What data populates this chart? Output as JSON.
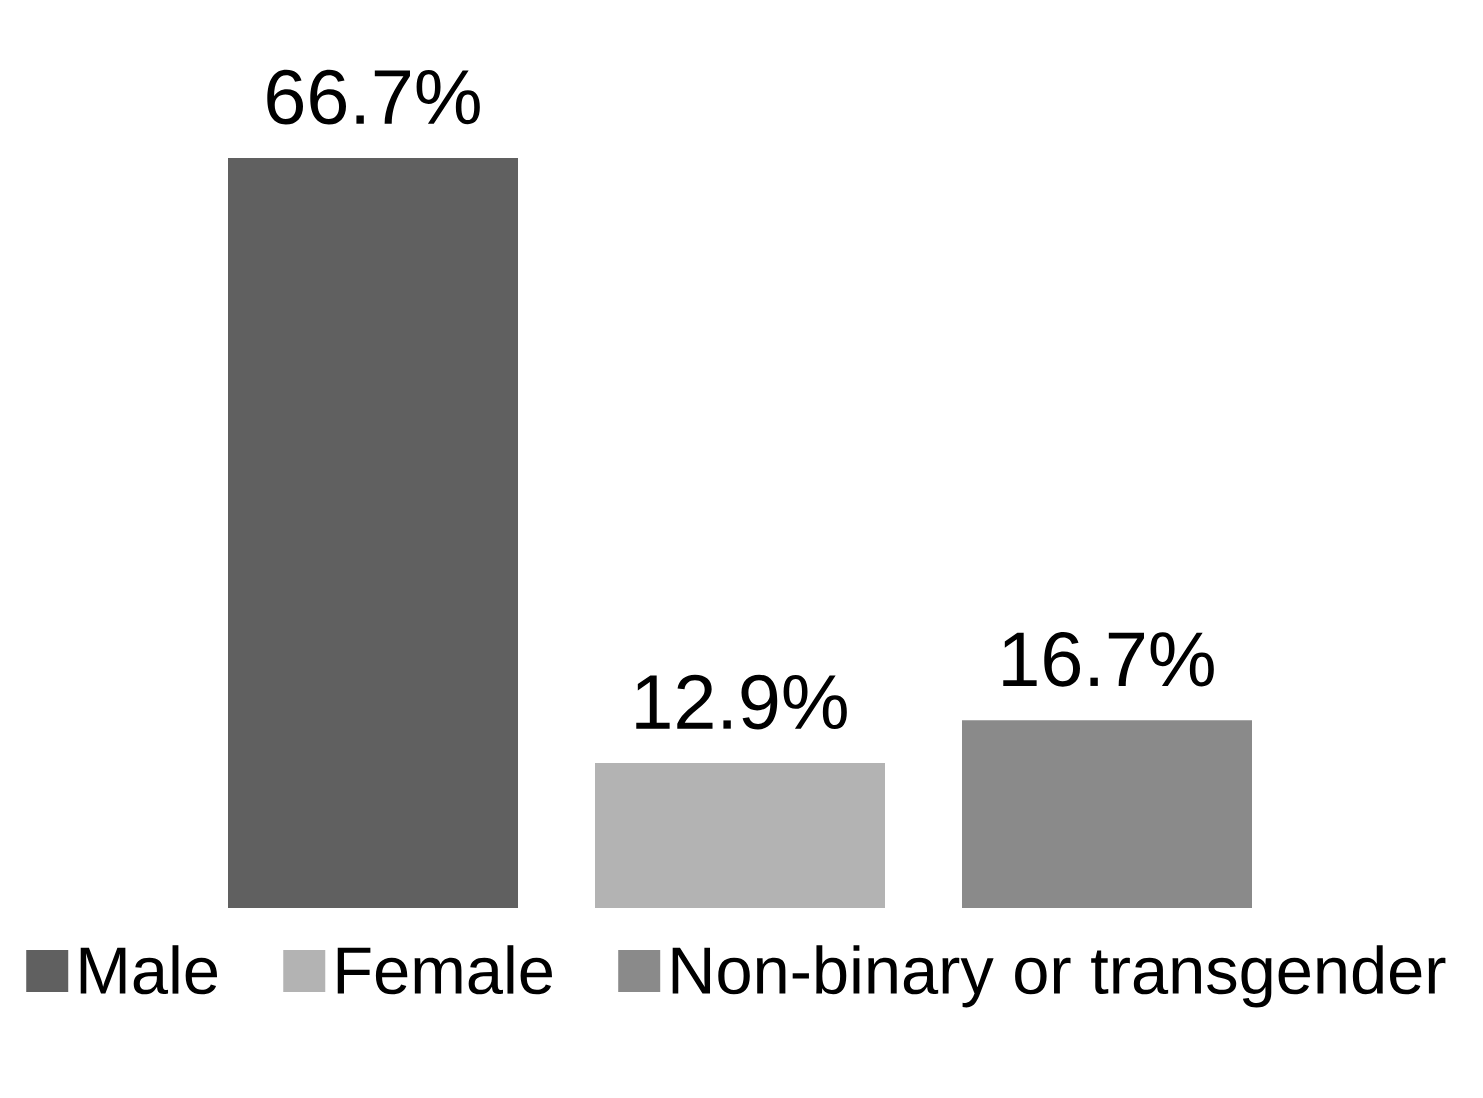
{
  "chart_data": {
    "type": "bar",
    "categories": [
      null
    ],
    "series": [
      {
        "name": "Male",
        "color": "#606060",
        "values": [
          66.7
        ],
        "value_labels": [
          "66.7%"
        ]
      },
      {
        "name": "Female",
        "color": "#b3b3b3",
        "values": [
          12.9
        ],
        "value_labels": [
          "12.9%"
        ]
      },
      {
        "name": "Non-binary or transgender",
        "color": "#8a8a8a",
        "values": [
          16.7
        ],
        "value_labels": [
          "16.7%"
        ]
      }
    ],
    "legend": "bottom"
  }
}
